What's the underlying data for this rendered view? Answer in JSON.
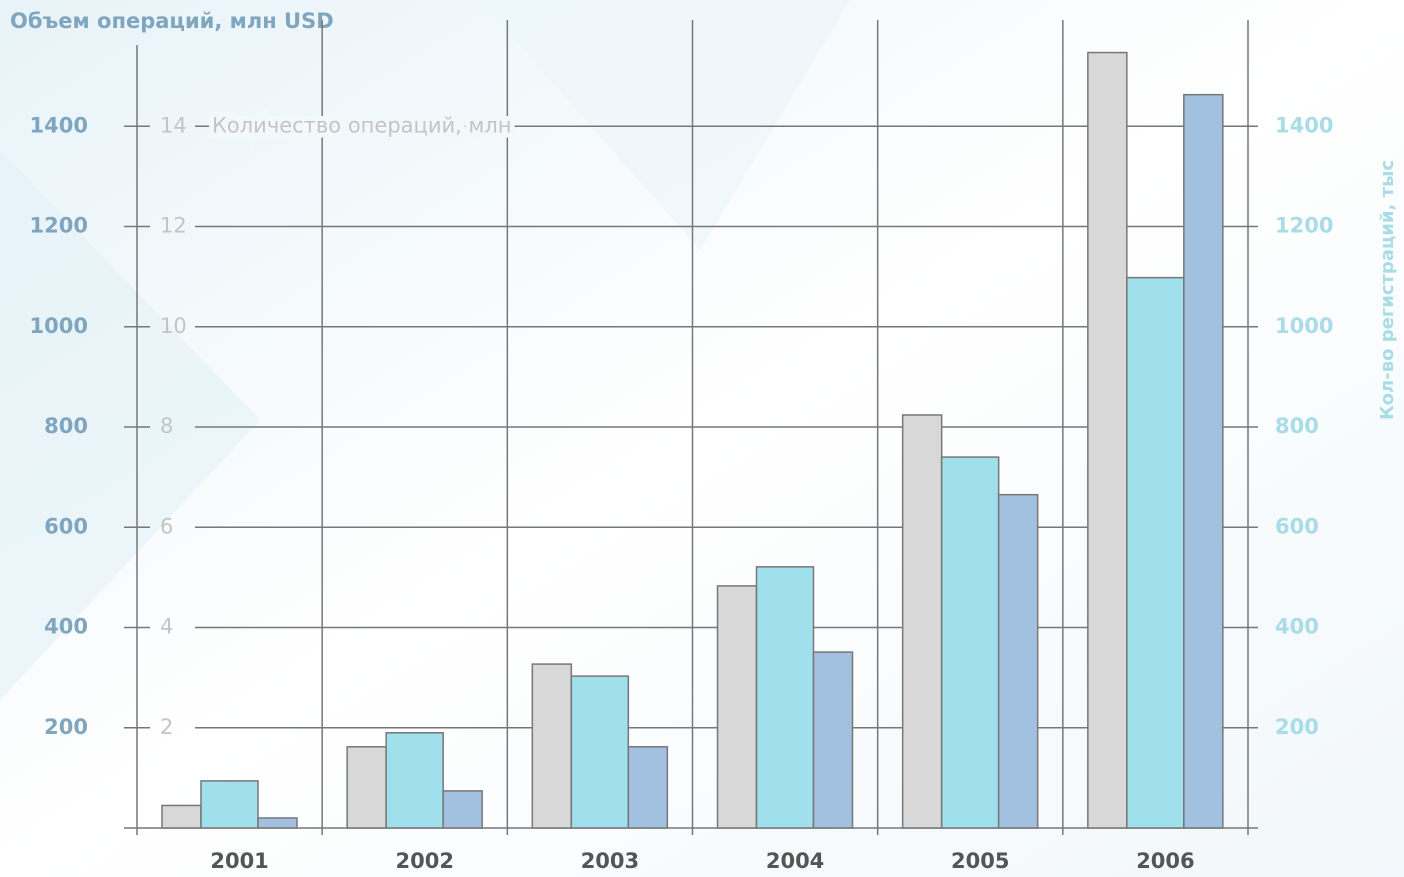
{
  "chart_data": {
    "type": "bar",
    "y_title": "Объем операций, млн USD",
    "y3_title": "Количество  операций, млн",
    "y2_title": "Кол-во регистраций, тыс",
    "categories": [
      "2001",
      "2002",
      "2003",
      "2004",
      "2005",
      "2006"
    ],
    "series": [
      {
        "axis": "y",
        "color": "#d8d8d8",
        "values": [
          45,
          162,
          327,
          483,
          824,
          1547
        ]
      },
      {
        "axis": "y2",
        "color": "#9fe0ec",
        "values": [
          94,
          190,
          303,
          521,
          740,
          1098
        ]
      },
      {
        "axis": "y3",
        "color": "#a2c0e0",
        "values": [
          0.2,
          0.74,
          1.62,
          3.51,
          6.65,
          14.63
        ]
      }
    ],
    "ylim": [
      0,
      1600
    ],
    "yticks": [
      200,
      400,
      600,
      800,
      1000,
      1200,
      1400
    ],
    "y2lim": [
      0,
      1600
    ],
    "y2ticks": [
      200,
      400,
      600,
      800,
      1000,
      1200,
      1400
    ],
    "y3lim": [
      0,
      16
    ],
    "y3ticks": [
      2,
      4,
      6,
      8,
      10,
      12,
      14
    ],
    "grid": true
  }
}
